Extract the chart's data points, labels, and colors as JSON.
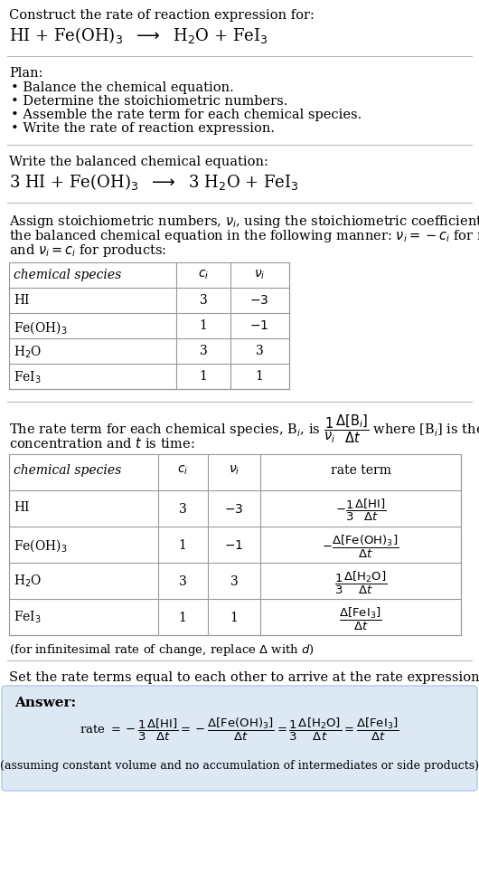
{
  "bg_color": "#ffffff",
  "text_color": "#000000",
  "answer_bg": "#dce9f5",
  "fig_width": 5.3,
  "fig_height": 9.76,
  "dpi": 100,
  "section1_title": "Construct the rate of reaction expression for:",
  "section1_eq": "HI + Fe(OH)$_3$  $\\longrightarrow$  H$_2$O + FeI$_3$",
  "section2_title": "Plan:",
  "section2_items": [
    "Balance the chemical equation.",
    "Determine the stoichiometric numbers.",
    "Assemble the rate term for each chemical species.",
    "Write the rate of reaction expression."
  ],
  "section3_title": "Write the balanced chemical equation:",
  "section3_eq": "3 HI + Fe(OH)$_3$  $\\longrightarrow$  3 H$_2$O + FeI$_3$",
  "section4_intro_lines": [
    "Assign stoichiometric numbers, $\\nu_i$, using the stoichiometric coefficients, $c_i$, from",
    "the balanced chemical equation in the following manner: $\\nu_i = -c_i$ for reactants",
    "and $\\nu_i = c_i$ for products:"
  ],
  "table1_headers": [
    "chemical species",
    "$c_i$",
    "$\\nu_i$"
  ],
  "table1_rows": [
    [
      "HI",
      "3",
      "$-3$"
    ],
    [
      "Fe(OH)$_3$",
      "1",
      "$-1$"
    ],
    [
      "H$_2$O",
      "3",
      "3"
    ],
    [
      "FeI$_3$",
      "1",
      "1"
    ]
  ],
  "section5_intro_line1": "The rate term for each chemical species, B$_i$, is $\\dfrac{1}{\\nu_i}\\dfrac{\\Delta[\\mathrm{B}_i]}{\\Delta t}$ where [B$_i$] is the amount",
  "section5_intro_line2": "concentration and $t$ is time:",
  "table2_headers": [
    "chemical species",
    "$c_i$",
    "$\\nu_i$",
    "rate term"
  ],
  "table2_rows": [
    [
      "HI",
      "3",
      "$-3$",
      "$-\\dfrac{1}{3}\\dfrac{\\Delta[\\mathrm{HI}]}{\\Delta t}$"
    ],
    [
      "Fe(OH)$_3$",
      "1",
      "$-1$",
      "$-\\dfrac{\\Delta[\\mathrm{Fe(OH)_3}]}{\\Delta t}$"
    ],
    [
      "H$_2$O",
      "3",
      "3",
      "$\\dfrac{1}{3}\\dfrac{\\Delta[\\mathrm{H_2O}]}{\\Delta t}$"
    ],
    [
      "FeI$_3$",
      "1",
      "1",
      "$\\dfrac{\\Delta[\\mathrm{FeI_3}]}{\\Delta t}$"
    ]
  ],
  "section5_footnote": "(for infinitesimal rate of change, replace $\\Delta$ with $d$)",
  "section6_title": "Set the rate terms equal to each other to arrive at the rate expression:",
  "answer_label": "Answer:",
  "rate_expr": "rate $= -\\dfrac{1}{3}\\dfrac{\\Delta[\\mathrm{HI}]}{\\Delta t} = -\\dfrac{\\Delta[\\mathrm{Fe(OH)_3}]}{\\Delta t} = \\dfrac{1}{3}\\dfrac{\\Delta[\\mathrm{H_2O}]}{\\Delta t} = \\dfrac{\\Delta[\\mathrm{FeI_3}]}{\\Delta t}$",
  "section6_footnote": "(assuming constant volume and no accumulation of intermediates or side products)"
}
